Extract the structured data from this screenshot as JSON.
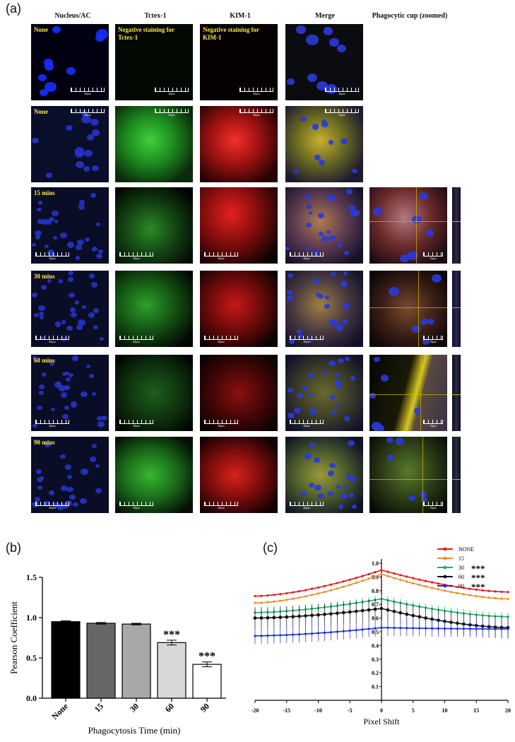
{
  "panel_a": {
    "letter": "(a)",
    "columns": [
      "Nucleus/AC",
      "Tctex-1",
      "KIM-1",
      "Merge",
      "Phagocytic cup (zoomed)"
    ],
    "rows": [
      {
        "label": "None",
        "tctex_note": "Negative staining for Tctex-1",
        "kim_note": "Negative staining for KIM-1"
      },
      {
        "label": "None"
      },
      {
        "label": "15 mins"
      },
      {
        "label": "30 mins"
      },
      {
        "label": "60 mins"
      },
      {
        "label": "90 mins"
      }
    ],
    "scalebar": "40μm",
    "cup_scalebar": "10μm"
  },
  "chart_data": [
    {
      "panel": "(b)",
      "type": "bar",
      "categories": [
        "None",
        "15",
        "30",
        "60",
        "90"
      ],
      "values": [
        0.95,
        0.93,
        0.92,
        0.69,
        0.42
      ],
      "errors": [
        0.01,
        0.01,
        0.01,
        0.03,
        0.03
      ],
      "significance": [
        "",
        "",
        "",
        "***",
        "***"
      ],
      "bar_colors": [
        "#000000",
        "#666666",
        "#a8a8aa",
        "#d8d8d8",
        "#ffffff"
      ],
      "xlabel": "Phagocytosis Time (min)",
      "ylabel": "Pearson Coefficient",
      "ylim": [
        0.0,
        1.5
      ],
      "yticks": [
        "0.0",
        "0.5",
        "1.0",
        "1.5"
      ]
    },
    {
      "panel": "(c)",
      "type": "line",
      "xlabel": "Pixel Shift",
      "xlim": [
        -20,
        20
      ],
      "ylim": [
        0,
        1.0
      ],
      "xticks": [
        "-20",
        "-15",
        "-10",
        "-5",
        "0",
        "5",
        "10",
        "15",
        "20"
      ],
      "yticks": [
        "0.1",
        "0.2",
        "0.3",
        "0.4",
        "0.5",
        "0.6",
        "0.7",
        "0.8",
        "0.9",
        "1.0"
      ],
      "legend_position": "top-right",
      "series": [
        {
          "name": "NONE",
          "color": "#e8161b",
          "sig": "",
          "left": 0.76,
          "peak": 0.95,
          "right": 0.79,
          "err": 0.0
        },
        {
          "name": "15",
          "color": "#f08c2a",
          "sig": "",
          "left": 0.71,
          "peak": 0.92,
          "right": 0.74,
          "err": 0.0
        },
        {
          "name": "30",
          "color": "#19b068",
          "sig": "***",
          "left": 0.64,
          "peak": 0.74,
          "right": 0.61,
          "err": 0.03
        },
        {
          "name": "60",
          "color": "#111111",
          "sig": "***",
          "left": 0.6,
          "peak": 0.67,
          "right": 0.53,
          "err": 0.08
        },
        {
          "name": "90",
          "color": "#1f2fd6",
          "sig": "***",
          "left": 0.47,
          "peak": 0.53,
          "right": 0.52,
          "err": 0.06
        }
      ]
    }
  ]
}
